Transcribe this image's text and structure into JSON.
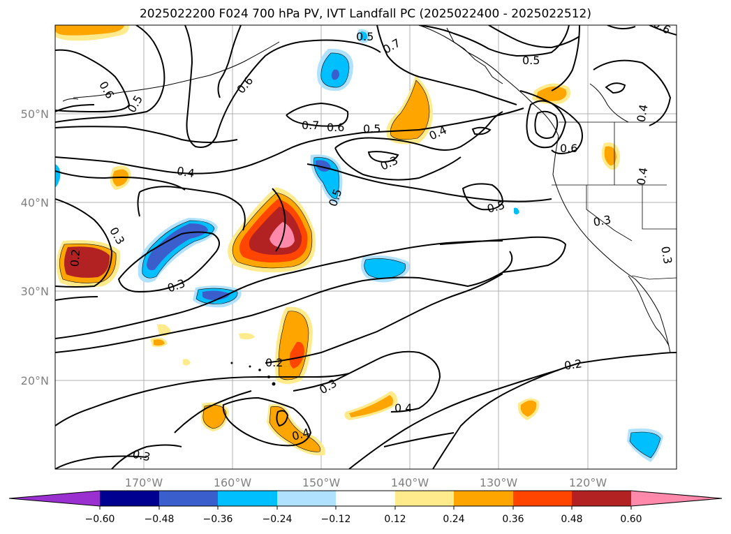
{
  "title": "2025022200 F024 700 hPa PV, IVT Landfall PC (2025022400 - 2025022512)",
  "map": {
    "lon_range": [
      -180,
      -110
    ],
    "lat_range": [
      10,
      60
    ],
    "x_ticks": [
      "170°W",
      "160°W",
      "150°W",
      "140°W",
      "130°W",
      "120°W"
    ],
    "y_ticks": [
      "50°N",
      "40°N",
      "30°N",
      "20°N"
    ]
  },
  "contour_labels": [
    "0.5",
    "0.7",
    "0.6",
    "0.6",
    "0.5",
    "0.7",
    "0.6",
    "0.5",
    "0.4",
    "0.5",
    "0.6",
    "0.6",
    "0.4",
    "0.4",
    "0.3",
    "0.5",
    "0.5",
    "0.4",
    "0.3",
    "0.3",
    "0.2",
    "0.3",
    "0.3",
    "0.2",
    "0.3",
    "0.4",
    "0.4",
    "0.2",
    "0.3"
  ],
  "colorbar": {
    "ticks": [
      "−0.60",
      "−0.48",
      "−0.36",
      "−0.24",
      "−0.12",
      "0.12",
      "0.24",
      "0.36",
      "0.48",
      "0.60"
    ],
    "colors": [
      "#9b30d0",
      "#000090",
      "#3a5fcd",
      "#00bfff",
      "#b0e2ff",
      "#ffffff",
      "#ffea8c",
      "#ffa500",
      "#ff4500",
      "#b22222",
      "#ff89aa",
      "#ff89aa"
    ]
  },
  "fill_colors": {
    "neg1": "#b0e2ff",
    "neg2": "#00bfff",
    "neg3": "#3a5fcd",
    "neg4": "#000090",
    "pos1": "#ffea8c",
    "pos2": "#ffa500",
    "pos3": "#ff4500",
    "pos4": "#b22222",
    "pos5": "#ff89aa"
  }
}
